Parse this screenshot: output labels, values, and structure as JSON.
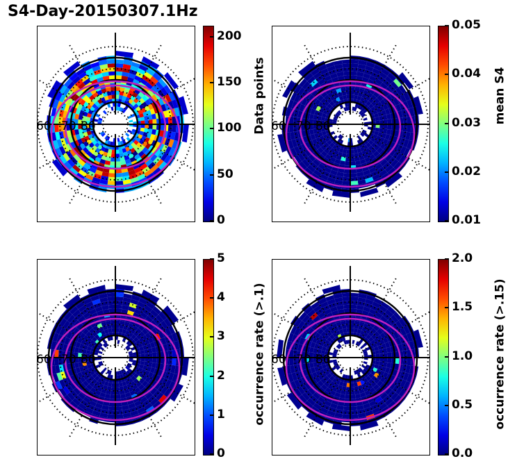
{
  "figure": {
    "title": "S4-Day-20150307.1Hz"
  },
  "chart_data": [
    {
      "type": "heatmap",
      "projection": "polar (magnetic latitude / local time)",
      "title": "",
      "colormap": "jet",
      "latitude_labels": [
        "60",
        "70",
        "80"
      ],
      "colorbar": {
        "label": "Data points",
        "range": [
          0,
          212
        ],
        "ticks": [
          "0",
          "50",
          "100",
          "150",
          "200"
        ],
        "tick_values": [
          0,
          50,
          100,
          150,
          200
        ]
      },
      "fill_profile": "dense",
      "overlay_colors": {
        "oval": "#c020c0",
        "grid": "#000000"
      }
    },
    {
      "type": "heatmap",
      "projection": "polar (magnetic latitude / local time)",
      "title": "",
      "colormap": "jet",
      "latitude_labels": [
        "60",
        "70",
        "80"
      ],
      "colorbar": {
        "label": "mean S4",
        "range": [
          0.01,
          0.05
        ],
        "ticks": [
          "0.01",
          "0.02",
          "0.03",
          "0.04",
          "0.05"
        ],
        "tick_values": [
          0.01,
          0.02,
          0.03,
          0.04,
          0.05
        ]
      },
      "fill_profile": "low",
      "overlay_colors": {
        "oval": "#c020c0",
        "grid": "#000000"
      }
    },
    {
      "type": "heatmap",
      "projection": "polar (magnetic latitude / local time)",
      "title": "",
      "colormap": "jet",
      "latitude_labels": [
        "60",
        "70",
        "80"
      ],
      "colorbar": {
        "label": "occurrence rate (>.1)",
        "range": [
          0,
          5
        ],
        "ticks": [
          "0",
          "1",
          "2",
          "3",
          "4",
          "5"
        ],
        "tick_values": [
          0,
          1,
          2,
          3,
          4,
          5
        ]
      },
      "fill_profile": "sparse",
      "overlay_colors": {
        "oval": "#c020c0",
        "grid": "#000000"
      }
    },
    {
      "type": "heatmap",
      "projection": "polar (magnetic latitude / local time)",
      "title": "",
      "colormap": "jet",
      "latitude_labels": [
        "60",
        "70",
        "80"
      ],
      "colorbar": {
        "label": "occurrence rate (>.15)",
        "range": [
          0,
          2
        ],
        "ticks": [
          "0.0",
          "0.5",
          "1.0",
          "1.5",
          "2.0"
        ],
        "tick_values": [
          0,
          0.5,
          1.0,
          1.5,
          2.0
        ]
      },
      "fill_profile": "sparse2",
      "overlay_colors": {
        "oval": "#c020c0",
        "grid": "#000000"
      }
    }
  ]
}
